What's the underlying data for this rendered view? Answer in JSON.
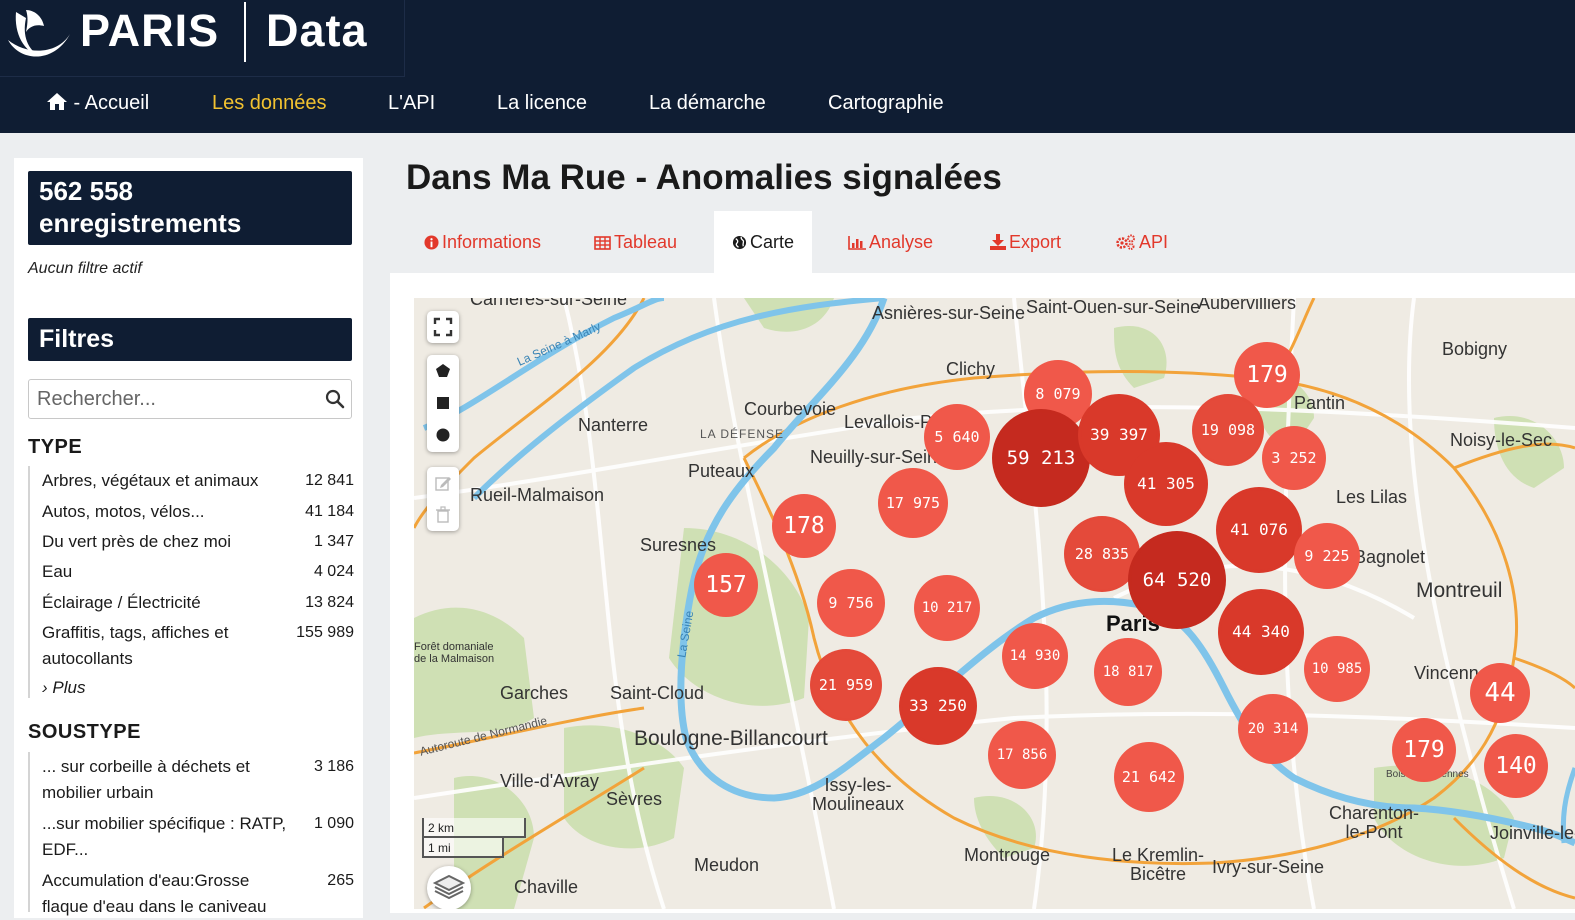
{
  "brand": {
    "name": "PARIS",
    "product": "Data"
  },
  "nav": {
    "home": " - Accueil",
    "items": [
      "Les données",
      "L'API",
      "La licence",
      "La démarche",
      "Cartographie"
    ]
  },
  "sidebar": {
    "record_count": "562 558 enregistrements",
    "no_filter": "Aucun filtre actif",
    "filters_title": "Filtres",
    "search_placeholder": "Rechercher...",
    "type": {
      "title": "TYPE",
      "items": [
        {
          "label": "Arbres, végétaux et animaux",
          "count": "12 841"
        },
        {
          "label": "Autos, motos, vélos...",
          "count": "41 184"
        },
        {
          "label": "Du vert près de chez moi",
          "count": "1 347"
        },
        {
          "label": "Eau",
          "count": "4 024"
        },
        {
          "label": "Éclairage / Électricité",
          "count": "13 824"
        },
        {
          "label": "Graffitis, tags, affiches et autocollants",
          "count": "155 989"
        }
      ],
      "more": "Plus"
    },
    "soustype": {
      "title": "SOUSTYPE",
      "items": [
        {
          "label": "... sur corbeille à déchets et mobilier urbain",
          "count": "3 186"
        },
        {
          "label": "...sur mobilier spécifique : RATP, EDF...",
          "count": "1 090"
        },
        {
          "label": "Accumulation d'eau:Grosse flaque d'eau dans le caniveau",
          "count": "265"
        }
      ]
    }
  },
  "main": {
    "title": "Dans Ma Rue - Anomalies signalées",
    "tabs": [
      "Informations",
      "Tableau",
      "Carte",
      "Analyse",
      "Export",
      "API"
    ],
    "active_tab": "Carte"
  },
  "map": {
    "places": [
      "Carrières-sur-Seine",
      "Asnières-sur-Seine",
      "Saint-Ouen-sur-Seine",
      "Aubervilliers",
      "Bobigny",
      "Clichy",
      "Pantin",
      "Courbevoie",
      "Nanterre",
      "LA DÉFENSE",
      "Levallois-Perret",
      "Noisy-le-Sec",
      "Neuilly-sur-Seine",
      "Puteaux",
      "Rueil-Malmaison",
      "Les Lilas",
      "Suresnes",
      "Bagnolet",
      "Montreuil",
      "Paris",
      "Forêt domaniale de la Malmaison",
      "Garches",
      "Saint-Cloud",
      "Vincennes",
      "Boulogne-Billancourt",
      "Ville-d'Avray",
      "Issy-les-Moulineaux",
      "Sèvres",
      "Charenton-le-Pont",
      "Joinville-le-Pont",
      "Montrouge",
      "Le Kremlin-Bicêtre",
      "Ivry-sur-Seine",
      "Meudon",
      "Chaville",
      "La Seine",
      "Autoroute de Normandie",
      "La Seine à Marly",
      "Bois de Vincennes"
    ],
    "clusters": [
      "179",
      "8 079",
      "5 640",
      "59 213",
      "39 397",
      "19 098",
      "3 252",
      "41 305",
      "17 975",
      "178",
      "41 076",
      "28 835",
      "64 520",
      "9 225",
      "157",
      "9 756",
      "10 217",
      "44 340",
      "14 930",
      "18 817",
      "10 985",
      "21 959",
      "33 250",
      "44",
      "20 314",
      "17 856",
      "21 642",
      "179",
      "140"
    ],
    "scale": {
      "km": "2 km",
      "mi": "1 mi"
    },
    "colors": {
      "water": "#7fc4ea",
      "green": "#cfe0b4",
      "land": "#efebe3",
      "cluster_light": "#f0584a",
      "cluster_mid": "#e0402f",
      "cluster_dark": "#c52a1f",
      "highway": "#f2a33a"
    }
  },
  "colors": {
    "navy": "#0f1d33",
    "accent": "#f2c230",
    "tab_red": "#e2382b"
  },
  "icons": {
    "home": "home-icon",
    "search": "search-icon",
    "info": "info-icon",
    "table": "table-icon",
    "globe": "globe-icon",
    "chart": "bar-chart-icon",
    "download": "download-icon",
    "cogs": "cogs-icon",
    "fullscreen": "fullscreen-icon",
    "polygon": "polygon-draw-icon",
    "rectangle": "rectangle-draw-icon",
    "circle": "circle-draw-icon",
    "edit": "edit-icon",
    "trash": "trash-icon",
    "layers": "layers-icon"
  }
}
